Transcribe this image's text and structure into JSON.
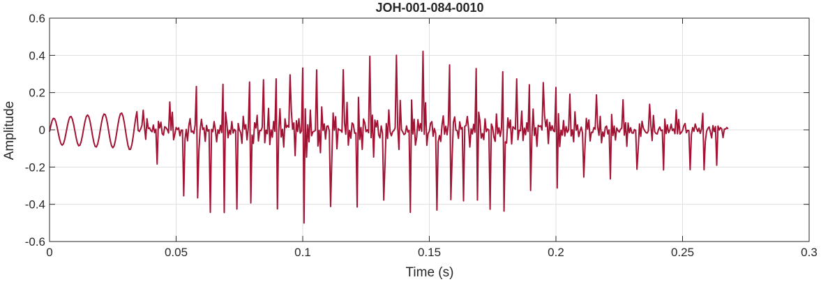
{
  "chart_data": {
    "type": "line",
    "title": "JOH-001-084-0010",
    "xlabel": "Time (s)",
    "ylabel": "Amplitude",
    "xlim": [
      0,
      0.3
    ],
    "ylim": [
      -0.6,
      0.6
    ],
    "grid": true,
    "legend": "none",
    "x_ticks": [
      "0",
      "0.05",
      "0.1",
      "0.15",
      "0.2",
      "0.25",
      "0.3"
    ],
    "y_ticks": [
      "-0.6",
      "-0.4",
      "-0.2",
      "0",
      "0.2",
      "0.4",
      "0.6"
    ],
    "colors": {
      "line": "#a11233",
      "grid": "#dfdfdf",
      "axes": "#262626"
    },
    "series": [
      {
        "signal_start_s": 0,
        "signal_end_s": 0.268,
        "sample_interval_s": 0.0005,
        "envelope": {
          "t": [
            0,
            0.01,
            0.02,
            0.03,
            0.04,
            0.05,
            0.06,
            0.07,
            0.08,
            0.09,
            0.1,
            0.11,
            0.12,
            0.13,
            0.14,
            0.15,
            0.16,
            0.17,
            0.18,
            0.19,
            0.2,
            0.21,
            0.22,
            0.23,
            0.24,
            0.25,
            0.26,
            0.268
          ],
          "max": [
            0.05,
            0.07,
            0.08,
            0.09,
            0.12,
            0.18,
            0.26,
            0.28,
            0.27,
            0.28,
            0.35,
            0.36,
            0.38,
            0.42,
            0.43,
            0.42,
            0.39,
            0.35,
            0.32,
            0.27,
            0.24,
            0.21,
            0.19,
            0.16,
            0.13,
            0.11,
            0.1,
            0.09
          ],
          "min": [
            -0.09,
            -0.09,
            -0.1,
            -0.1,
            -0.17,
            -0.32,
            -0.44,
            -0.46,
            -0.43,
            -0.48,
            -0.51,
            -0.45,
            -0.42,
            -0.43,
            -0.45,
            -0.44,
            -0.43,
            -0.44,
            -0.48,
            -0.38,
            -0.34,
            -0.3,
            -0.27,
            -0.25,
            -0.23,
            -0.22,
            -0.22,
            -0.21
          ]
        }
      }
    ]
  }
}
